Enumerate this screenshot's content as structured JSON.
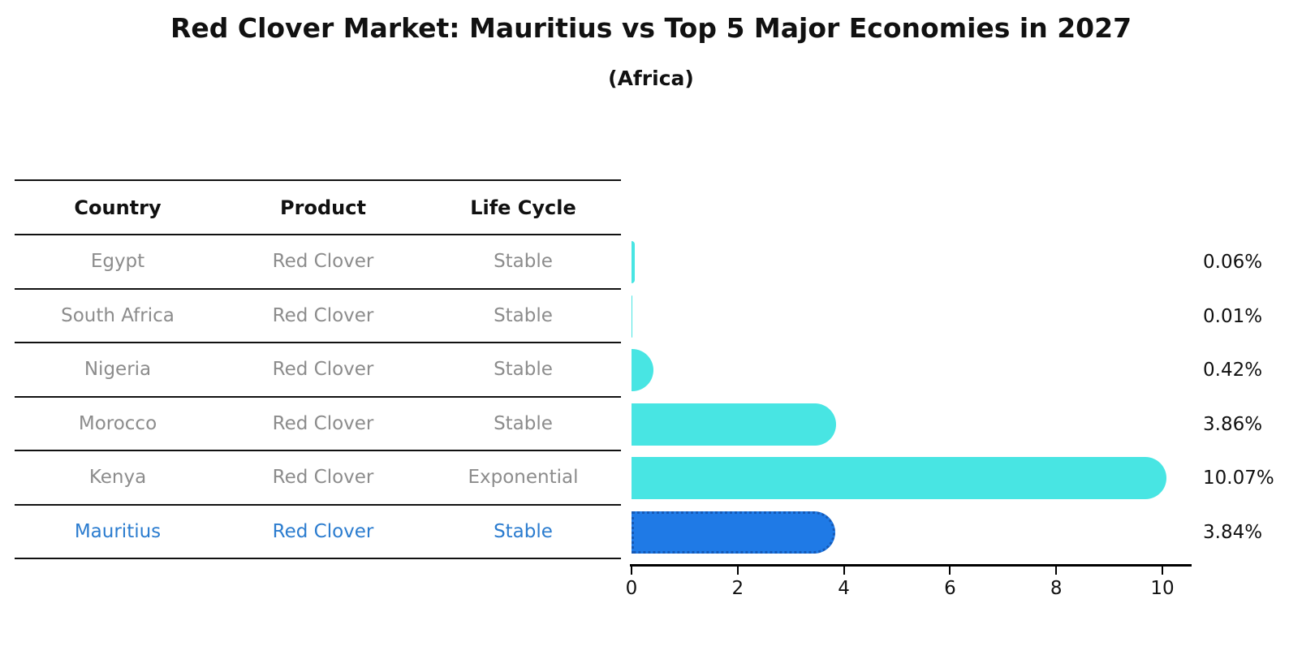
{
  "page": {
    "title": "Red Clover Market: Mauritius vs Top 5 Major Economies in 2027",
    "subtitle": "(Africa)"
  },
  "table": {
    "columns": [
      "Country",
      "Product",
      "Life Cycle"
    ],
    "rows": [
      {
        "country": "Egypt",
        "product": "Red Clover",
        "life_cycle": "Stable",
        "highlight": false
      },
      {
        "country": "South Africa",
        "product": "Red Clover",
        "life_cycle": "Stable",
        "highlight": false
      },
      {
        "country": "Nigeria",
        "product": "Red Clover",
        "life_cycle": "Stable",
        "highlight": false
      },
      {
        "country": "Morocco",
        "product": "Red Clover",
        "life_cycle": "Stable",
        "highlight": false
      },
      {
        "country": "Kenya",
        "product": "Red Clover",
        "life_cycle": "Exponential",
        "highlight": false
      },
      {
        "country": "Mauritius",
        "product": "Red Clover",
        "life_cycle": "Stable",
        "highlight": true
      }
    ]
  },
  "chart_data": {
    "type": "bar",
    "orientation": "horizontal",
    "title": "Red Clover Market: Mauritius vs Top 5 Major Economies in 2027",
    "subtitle": "(Africa)",
    "categories": [
      "Egypt",
      "South Africa",
      "Nigeria",
      "Morocco",
      "Kenya",
      "Mauritius"
    ],
    "values": [
      0.06,
      0.01,
      0.42,
      3.86,
      10.07,
      3.84
    ],
    "value_labels": [
      "0.06%",
      "0.01%",
      "0.42%",
      "3.86%",
      "10.07%",
      "3.84%"
    ],
    "x_ticks": [
      0,
      2,
      4,
      6,
      8,
      10
    ],
    "x_tick_labels": [
      "0",
      "2",
      "4",
      "6",
      "8",
      "10"
    ],
    "xlim": [
      0,
      10.6
    ],
    "grid": false,
    "legend": null,
    "highlight_category": "Mauritius",
    "colors": {
      "bar": "#48e5e3",
      "highlight_bar": "#1f7ae6",
      "highlight_bar_border": "#1659b5",
      "highlight_text": "#2b7ccf",
      "table_text": "#8c8c8c",
      "heading_text": "#111111",
      "axis": "#000000"
    }
  }
}
